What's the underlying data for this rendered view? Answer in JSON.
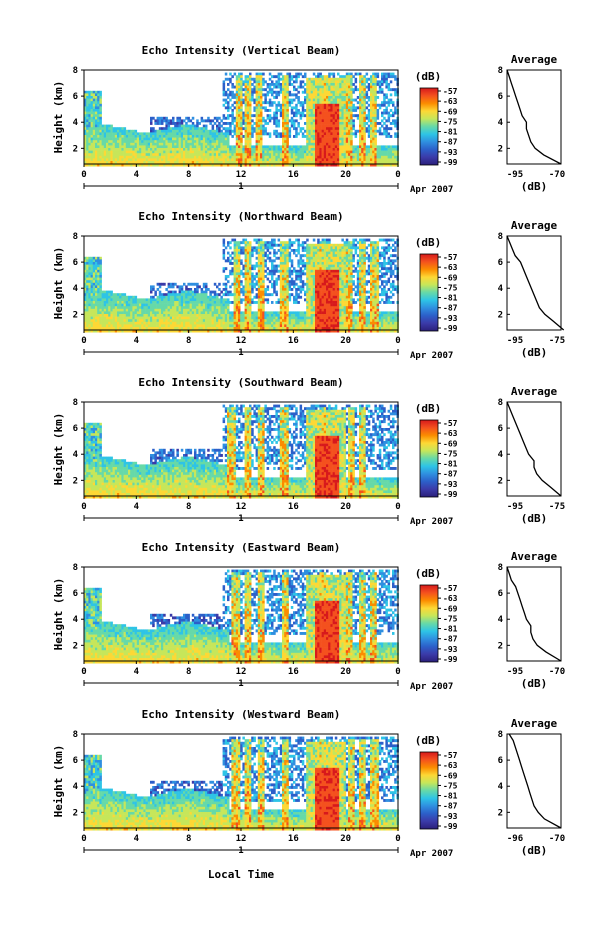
{
  "figure": {
    "xlabel": "Local Time",
    "date_label": "Apr 2007",
    "date_axis_day": "1",
    "colorbar_unit": "(dB)",
    "colorbar_ticks": [
      "-57",
      "-63",
      "-69",
      "-75",
      "-81",
      "-87",
      "-93",
      "-99"
    ],
    "colorbar_colors": [
      "#d7191c",
      "#f4511e",
      "#fb8c00",
      "#fdd835",
      "#c6e65a",
      "#66d9a8",
      "#2ec4e6",
      "#2f8fe0",
      "#2c5fc9",
      "#3b3aa8",
      "#2a1f7a"
    ],
    "profile_title": "Average",
    "profile_xlabel": "(dB)"
  },
  "chart_data": [
    {
      "type": "heatmap",
      "title": "Echo Intensity (Vertical Beam)",
      "ylabel": "Height (km)",
      "x": {
        "ticks": [
          "0",
          "4",
          "8",
          "12",
          "16",
          "20",
          "0"
        ],
        "range": [
          0,
          24
        ],
        "unit": "hour"
      },
      "y": {
        "ticks": [
          "2",
          "4",
          "6",
          "8"
        ],
        "range": [
          0.8,
          8
        ]
      },
      "colorbar": {
        "range": [
          -99,
          -57
        ],
        "unit": "dB"
      },
      "description_values": {
        "storm_hours": [
          17.5,
          19.5
        ],
        "intense_cells_hours": [
          11.8,
          12.4,
          13.3,
          15.3,
          18.3,
          20.2,
          21.2,
          22.0
        ]
      },
      "profile": {
        "title": "Average",
        "xlim": [
          -95,
          -70
        ],
        "xticks": [
          "-95",
          "-70"
        ],
        "yticks": [
          "2",
          "4",
          "6",
          "8"
        ],
        "height": [
          0.8,
          1.5,
          2,
          2.5,
          3,
          3.5,
          4,
          4.5,
          5,
          5.5,
          6,
          6.5,
          7,
          7.5,
          8
        ],
        "db": [
          -70,
          -78,
          -82,
          -84,
          -85,
          -86,
          -86,
          -88,
          -89,
          -90,
          -91,
          -92,
          -93,
          -94,
          -95
        ]
      }
    },
    {
      "type": "heatmap",
      "title": "Echo Intensity (Northward Beam)",
      "ylabel": "Height (km)",
      "x": {
        "ticks": [
          "0",
          "4",
          "8",
          "12",
          "16",
          "20",
          "0"
        ],
        "range": [
          0,
          24
        ],
        "unit": "hour"
      },
      "y": {
        "ticks": [
          "2",
          "4",
          "6",
          "8"
        ],
        "range": [
          0.8,
          8
        ]
      },
      "colorbar": {
        "range": [
          -99,
          -57
        ],
        "unit": "dB"
      },
      "description_values": {
        "storm_hours": [
          17.5,
          19.5
        ],
        "intense_cells_hours": [
          11.6,
          12.4,
          13.4,
          15.2,
          18.2,
          20.2,
          21.2,
          22.1
        ]
      },
      "profile": {
        "title": "Average",
        "xlim": [
          -95,
          -75
        ],
        "xticks": [
          "-95",
          "-75"
        ],
        "yticks": [
          "2",
          "4",
          "6",
          "8"
        ],
        "height": [
          0.8,
          1.5,
          2,
          2.5,
          3,
          3.5,
          4,
          4.5,
          5,
          5.5,
          6,
          6.5,
          7,
          7.5,
          8
        ],
        "db": [
          -74,
          -78,
          -81,
          -83,
          -84,
          -85,
          -86,
          -87,
          -88,
          -89,
          -90,
          -92,
          -93,
          -94,
          -95
        ]
      }
    },
    {
      "type": "heatmap",
      "title": "Echo Intensity (Southward Beam)",
      "ylabel": "Height (km)",
      "x": {
        "ticks": [
          "0",
          "4",
          "8",
          "12",
          "16",
          "20",
          "0"
        ],
        "range": [
          0,
          24
        ],
        "unit": "hour"
      },
      "y": {
        "ticks": [
          "2",
          "4",
          "6",
          "8"
        ],
        "range": [
          0.8,
          8
        ]
      },
      "colorbar": {
        "range": [
          -99,
          -57
        ],
        "unit": "dB"
      },
      "description_values": {
        "storm_hours": [
          17.5,
          19.5
        ],
        "intense_cells_hours": [
          11.2,
          12.4,
          13.5,
          15.2,
          18.2,
          20.3,
          21.2
        ]
      },
      "profile": {
        "title": "Average",
        "xlim": [
          -95,
          -75
        ],
        "xticks": [
          "-95",
          "-75"
        ],
        "yticks": [
          "2",
          "4",
          "6",
          "8"
        ],
        "height": [
          0.8,
          1.5,
          2,
          2.5,
          3,
          3.5,
          4,
          4.5,
          5,
          5.5,
          6,
          6.5,
          7,
          7.5,
          8
        ],
        "db": [
          -75,
          -79,
          -82,
          -84,
          -85,
          -85,
          -87,
          -88,
          -89,
          -90,
          -91,
          -92,
          -93,
          -94,
          -95
        ]
      }
    },
    {
      "type": "heatmap",
      "title": "Echo Intensity (Eastward Beam)",
      "ylabel": "Height (km)",
      "x": {
        "ticks": [
          "0",
          "4",
          "8",
          "12",
          "16",
          "20",
          "0"
        ],
        "range": [
          0,
          24
        ],
        "unit": "hour"
      },
      "y": {
        "ticks": [
          "2",
          "4",
          "6",
          "8"
        ],
        "range": [
          0.8,
          8
        ]
      },
      "colorbar": {
        "range": [
          -99,
          -57
        ],
        "unit": "dB"
      },
      "description_values": {
        "storm_hours": [
          17.5,
          19.5
        ],
        "intense_cells_hours": [
          11.5,
          12.4,
          13.4,
          15.3,
          18.2,
          20.2,
          21.2,
          22.0
        ]
      },
      "profile": {
        "title": "Average",
        "xlim": [
          -95,
          -70
        ],
        "xticks": [
          "-95",
          "-70"
        ],
        "yticks": [
          "2",
          "4",
          "6",
          "8"
        ],
        "height": [
          0.8,
          1.5,
          2,
          2.5,
          3,
          3.5,
          4,
          4.5,
          5,
          5.5,
          6,
          6.5,
          7,
          7.5,
          8
        ],
        "db": [
          -70,
          -77,
          -81,
          -83,
          -84,
          -84,
          -86,
          -87,
          -88,
          -89,
          -90,
          -91,
          -93,
          -94,
          -95
        ]
      }
    },
    {
      "type": "heatmap",
      "title": "Echo Intensity (Westward Beam)",
      "ylabel": "Height (km)",
      "x": {
        "ticks": [
          "0",
          "4",
          "8",
          "12",
          "16",
          "20",
          "0"
        ],
        "range": [
          0,
          24
        ],
        "unit": "hour"
      },
      "y": {
        "ticks": [
          "2",
          "4",
          "6",
          "8"
        ],
        "range": [
          0.8,
          8
        ]
      },
      "colorbar": {
        "range": [
          -99,
          -57
        ],
        "unit": "dB"
      },
      "description_values": {
        "storm_hours": [
          17.5,
          19.5
        ],
        "intense_cells_hours": [
          11.5,
          12.4,
          13.4,
          15.3,
          18.2,
          20.3,
          21.2,
          22.1
        ]
      },
      "profile": {
        "title": "Average",
        "xlim": [
          -96,
          -70
        ],
        "xticks": [
          "-96",
          "-70"
        ],
        "yticks": [
          "2",
          "4",
          "6",
          "8"
        ],
        "height": [
          0.8,
          1.5,
          2,
          2.5,
          3,
          3.5,
          4,
          4.5,
          5,
          5.5,
          6,
          6.5,
          7,
          7.5,
          8
        ],
        "db": [
          -70,
          -78,
          -81,
          -83,
          -84,
          -85,
          -86,
          -87,
          -88,
          -89,
          -90,
          -91,
          -92,
          -93,
          -95
        ]
      }
    }
  ]
}
